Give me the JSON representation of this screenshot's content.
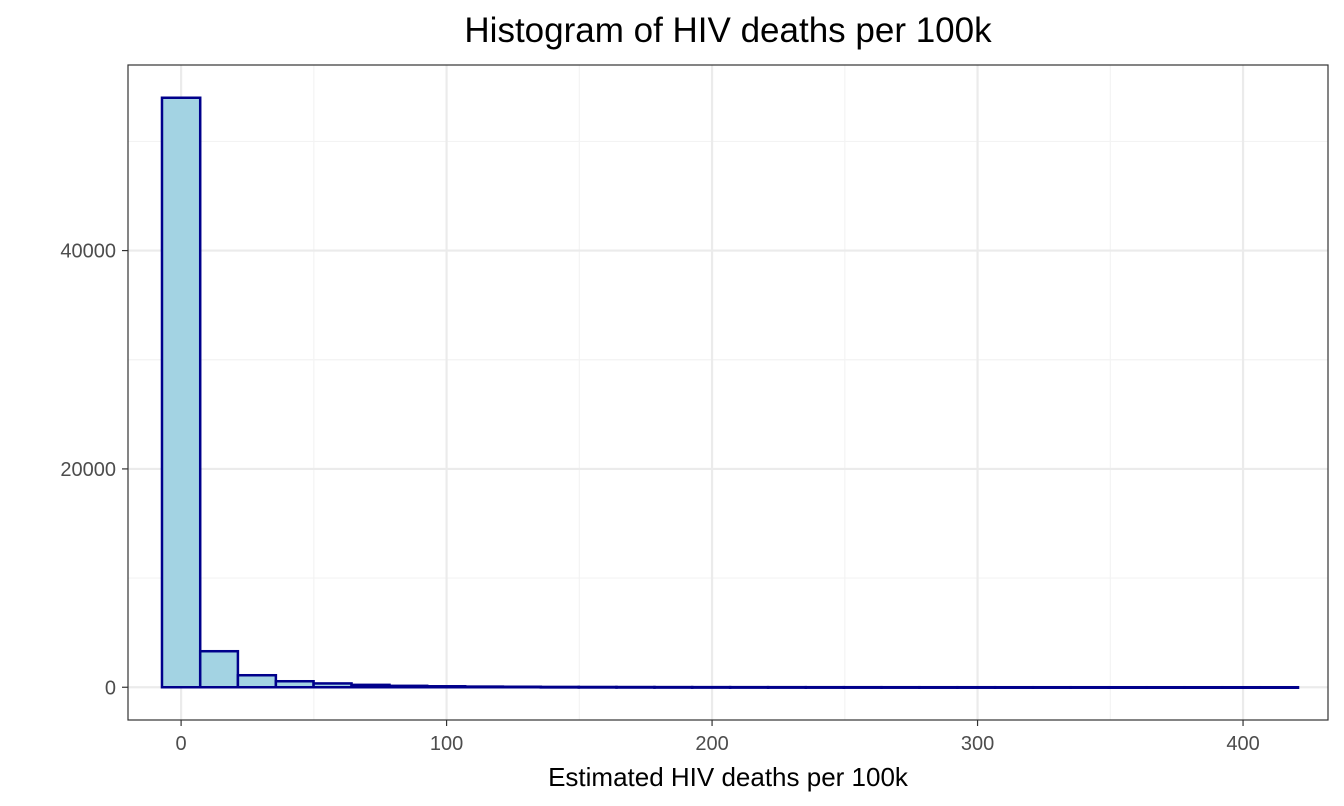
{
  "chart_data": {
    "type": "bar",
    "title": "Histogram of HIV deaths per 100k",
    "xlabel": "Estimated HIV deaths per 100k",
    "ylabel": "",
    "xlim": [
      -20,
      432
    ],
    "ylim": [
      -3000,
      57000
    ],
    "x_ticks": [
      0,
      100,
      200,
      300,
      400
    ],
    "x_tick_labels": [
      "0",
      "100",
      "200",
      "300",
      "400"
    ],
    "y_ticks": [
      0,
      20000,
      40000
    ],
    "y_tick_labels": [
      "0",
      "20000",
      "40000"
    ],
    "grid": true,
    "bins": [
      {
        "x0": -7.2,
        "x1": 7.2,
        "count": 54000
      },
      {
        "x0": 7.2,
        "x1": 21.4,
        "count": 3300
      },
      {
        "x0": 21.4,
        "x1": 35.7,
        "count": 1100
      },
      {
        "x0": 35.7,
        "x1": 49.9,
        "count": 550
      },
      {
        "x0": 49.9,
        "x1": 64.2,
        "count": 350
      },
      {
        "x0": 64.2,
        "x1": 78.5,
        "count": 220
      },
      {
        "x0": 78.5,
        "x1": 92.7,
        "count": 130
      },
      {
        "x0": 92.7,
        "x1": 107.0,
        "count": 90
      },
      {
        "x0": 107.0,
        "x1": 121.2,
        "count": 60
      },
      {
        "x0": 121.2,
        "x1": 135.5,
        "count": 45
      },
      {
        "x0": 135.5,
        "x1": 149.8,
        "count": 30
      },
      {
        "x0": 149.8,
        "x1": 164.0,
        "count": 25
      },
      {
        "x0": 164.0,
        "x1": 178.3,
        "count": 20
      },
      {
        "x0": 178.3,
        "x1": 192.5,
        "count": 15
      },
      {
        "x0": 192.5,
        "x1": 206.8,
        "count": 12
      },
      {
        "x0": 206.8,
        "x1": 221.1,
        "count": 10
      },
      {
        "x0": 221.1,
        "x1": 235.3,
        "count": 8
      },
      {
        "x0": 235.3,
        "x1": 249.6,
        "count": 6
      },
      {
        "x0": 249.6,
        "x1": 263.8,
        "count": 5
      },
      {
        "x0": 263.8,
        "x1": 278.1,
        "count": 4
      },
      {
        "x0": 278.1,
        "x1": 292.4,
        "count": 3
      },
      {
        "x0": 292.4,
        "x1": 306.6,
        "count": 3
      },
      {
        "x0": 306.6,
        "x1": 320.9,
        "count": 2
      },
      {
        "x0": 320.9,
        "x1": 335.1,
        "count": 2
      },
      {
        "x0": 335.1,
        "x1": 349.4,
        "count": 2
      },
      {
        "x0": 349.4,
        "x1": 363.7,
        "count": 1
      },
      {
        "x0": 363.7,
        "x1": 377.9,
        "count": 1
      },
      {
        "x0": 377.9,
        "x1": 392.2,
        "count": 1
      },
      {
        "x0": 392.2,
        "x1": 406.4,
        "count": 1
      },
      {
        "x0": 406.4,
        "x1": 420.7,
        "count": 1
      }
    ],
    "colors": {
      "bar_fill": "#a3d3e3",
      "bar_outline": "#00008b",
      "panel_border": "#333333",
      "grid_major": "#ebebeb",
      "grid_minor": "#f3f3f3",
      "tick_label": "#4d4d4d"
    }
  }
}
